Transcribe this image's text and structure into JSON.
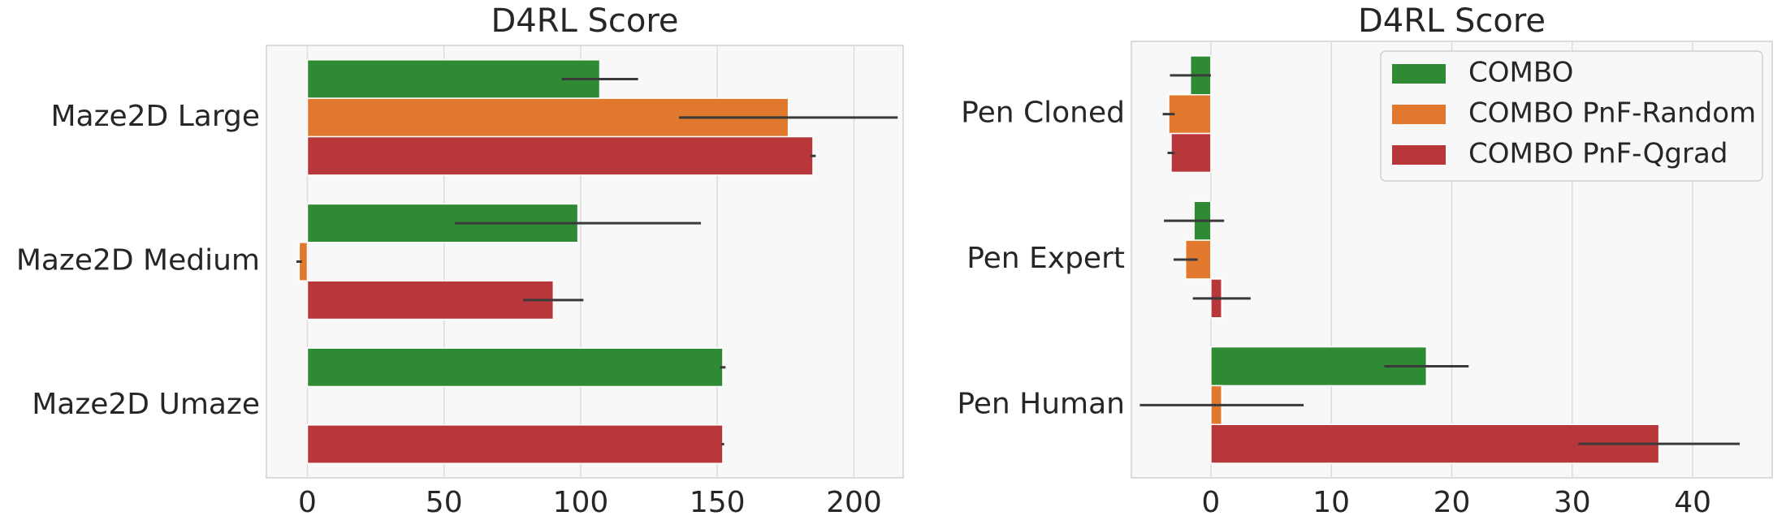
{
  "chart_data": [
    {
      "type": "barh",
      "title": "D4RL Score",
      "categories": [
        "Maze2D Large",
        "Maze2D Medium",
        "Maze2D Umaze"
      ],
      "series": [
        {
          "name": "COMBO",
          "color": "#2e8b34",
          "values": [
            107,
            99,
            152
          ],
          "errors": [
            14,
            45,
            1
          ]
        },
        {
          "name": "COMBO PnF-Random",
          "color": "#e0782e",
          "values": [
            176,
            -3,
            null
          ],
          "errors": [
            40,
            1,
            null
          ]
        },
        {
          "name": "COMBO PnF-Qgrad",
          "color": "#b8373a",
          "values": [
            185,
            90,
            152
          ],
          "errors": [
            1,
            11,
            0.5
          ]
        }
      ],
      "xlim": [
        -15,
        218
      ],
      "xticks": [
        0,
        50,
        100,
        150,
        200
      ],
      "grid": true
    },
    {
      "type": "barh",
      "title": "D4RL Score",
      "categories": [
        "Pen Cloned",
        "Pen Expert",
        "Pen Human"
      ],
      "series": [
        {
          "name": "COMBO",
          "color": "#2e8b34",
          "values": [
            -1.7,
            -1.4,
            17.9
          ],
          "errors": [
            1.7,
            2.5,
            3.5
          ]
        },
        {
          "name": "COMBO PnF-Random",
          "color": "#e0782e",
          "values": [
            -3.5,
            -2.1,
            0.9
          ],
          "errors": [
            0.5,
            1,
            6.8
          ]
        },
        {
          "name": "COMBO PnF-Qgrad",
          "color": "#b8373a",
          "values": [
            -3.3,
            0.9,
            37.2
          ],
          "errors": [
            0.3,
            2.4,
            6.7
          ]
        }
      ],
      "xlim": [
        -6.6,
        46.6
      ],
      "xticks": [
        0,
        10,
        20,
        30,
        40
      ],
      "grid": true,
      "legend": "upper right"
    }
  ]
}
